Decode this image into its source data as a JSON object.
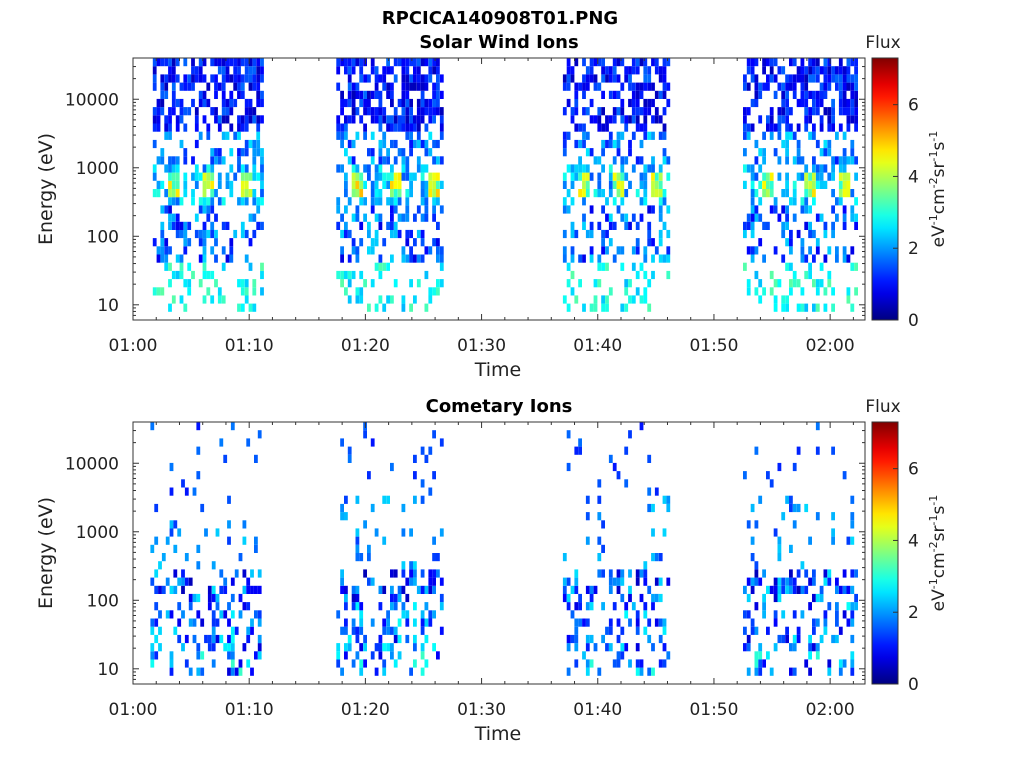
{
  "figure": {
    "title": "RPCICA140908T01.PNG"
  },
  "chart_data": [
    {
      "type": "heatmap",
      "title": "Solar Wind Ions",
      "xlabel": "Time",
      "ylabel": "Energy (eV)",
      "x_ticks": [
        "01:00",
        "01:10",
        "01:20",
        "01:30",
        "01:40",
        "01:50",
        "02:00"
      ],
      "x_range_minutes": [
        0,
        63
      ],
      "y_scale": "log",
      "y_ticks": [
        "10",
        "100",
        "1000",
        "10000"
      ],
      "y_range": [
        6,
        40000
      ],
      "colorbar": {
        "label": "Flux",
        "units": "eV-1cm-2sr-1s-1",
        "ticks": [
          "0",
          "2",
          "4",
          "6"
        ],
        "range": [
          0,
          7.3
        ],
        "colormap": "jet"
      },
      "bursts": [
        {
          "start_min": 1.7,
          "end_min": 11.0,
          "peak_energy_eV": 600,
          "peak_flux": 4.0,
          "peak_times_min": [
            3.2,
            6.2,
            9.5
          ]
        },
        {
          "start_min": 17.5,
          "end_min": 26.5,
          "peak_energy_eV": 600,
          "peak_flux": 4.3,
          "peak_times_min": [
            19.0,
            22.5,
            25.8
          ]
        },
        {
          "start_min": 37.0,
          "end_min": 46.0,
          "peak_energy_eV": 600,
          "peak_flux": 4.0,
          "peak_times_min": [
            38.5,
            41.5,
            45.0
          ]
        },
        {
          "start_min": 52.5,
          "end_min": 62.2,
          "peak_energy_eV": 600,
          "peak_flux": 4.0,
          "peak_times_min": [
            54.5,
            58.0,
            61.0
          ]
        }
      ]
    },
    {
      "type": "heatmap",
      "title": "Cometary Ions",
      "xlabel": "Time",
      "ylabel": "Energy (eV)",
      "x_ticks": [
        "01:00",
        "01:10",
        "01:20",
        "01:30",
        "01:40",
        "01:50",
        "02:00"
      ],
      "x_range_minutes": [
        0,
        63
      ],
      "y_scale": "log",
      "y_ticks": [
        "10",
        "100",
        "1000",
        "10000"
      ],
      "y_range": [
        6,
        40000
      ],
      "colorbar": {
        "label": "Flux",
        "units": "eV-1cm-2sr-1s-1",
        "ticks": [
          "0",
          "2",
          "4",
          "6"
        ],
        "range": [
          0,
          7.3
        ],
        "colormap": "jet"
      },
      "bursts": [
        {
          "start_min": 1.5,
          "end_min": 11.0,
          "peak_energy_eV": 150,
          "peak_flux": 2.5
        },
        {
          "start_min": 17.5,
          "end_min": 26.5,
          "peak_energy_eV": 150,
          "peak_flux": 2.5
        },
        {
          "start_min": 37.0,
          "end_min": 46.0,
          "peak_energy_eV": 150,
          "peak_flux": 2.5
        },
        {
          "start_min": 52.5,
          "end_min": 62.2,
          "peak_energy_eV": 150,
          "peak_flux": 2.8
        }
      ]
    }
  ]
}
